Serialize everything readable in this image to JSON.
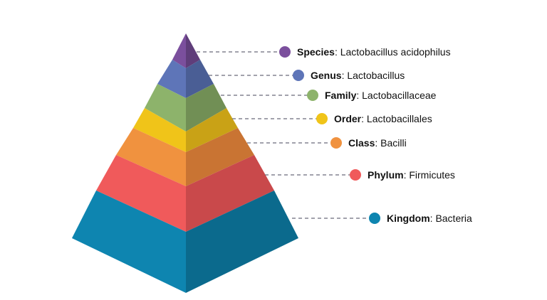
{
  "taxonomy": {
    "levels": [
      {
        "rank": "Species",
        "separator": ": ",
        "value": "Lactobacillus acidophilus",
        "color": "#7b4f9d"
      },
      {
        "rank": "Genus",
        "separator": ": ",
        "value": "Lactobacillus",
        "color": "#5e75b8"
      },
      {
        "rank": "Family",
        "separator": ": ",
        "value": "Lactobacillaceae",
        "color": "#8db36b"
      },
      {
        "rank": "Order",
        "separator": ": ",
        "value": "Lactobacillales",
        "color": "#f0c419"
      },
      {
        "rank": "Class",
        "separator": ": ",
        "value": "Bacilli",
        "color": "#f0923f"
      },
      {
        "rank": "Phylum",
        "separator": ": ",
        "value": "Firmicutes",
        "color": "#f05a5b"
      },
      {
        "rank": "Kingdom",
        "separator": ": ",
        "value": "Bacteria",
        "color": "#0e85b0"
      }
    ]
  }
}
